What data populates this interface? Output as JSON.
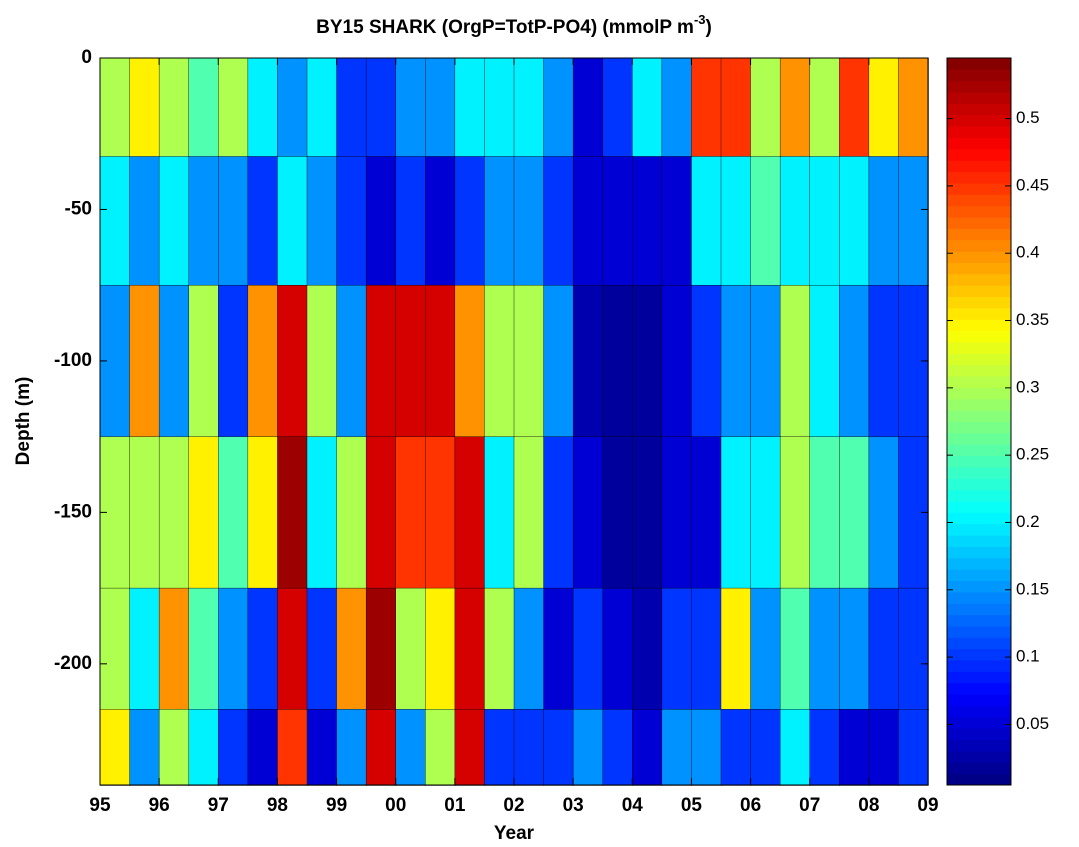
{
  "chart_data": {
    "type": "contour",
    "title": "BY15 SHARK (OrgP=TotP-PO4) (mmolP m",
    "title_superscript": "-3",
    "title_end": ")",
    "xlabel": "Year",
    "ylabel": "Depth (m)",
    "colormap": "jet",
    "x": [
      1995.25,
      1995.75,
      1996.25,
      1996.75,
      1997.25,
      1997.75,
      1998.25,
      1998.75,
      1999.25,
      1999.75,
      2000.25,
      2000.75,
      2001.25,
      2001.75,
      2002.25,
      2002.75,
      2003.25,
      2003.75,
      2004.25,
      2004.75,
      2005.25,
      2005.75,
      2006.25,
      2006.75,
      2007.25,
      2007.75,
      2008.25,
      2008.75
    ],
    "y": [
      -15,
      -50,
      -100,
      -150,
      -200,
      -230
    ],
    "z": [
      [
        0.3,
        0.35,
        0.3,
        0.25,
        0.3,
        0.2,
        0.15,
        0.2,
        0.1,
        0.1,
        0.15,
        0.15,
        0.2,
        0.2,
        0.2,
        0.15,
        0.05,
        0.1,
        0.2,
        0.15,
        0.45,
        0.45,
        0.3,
        0.4,
        0.3,
        0.45,
        0.35,
        0.4
      ],
      [
        0.2,
        0.15,
        0.2,
        0.15,
        0.15,
        0.1,
        0.2,
        0.15,
        0.1,
        0.05,
        0.1,
        0.05,
        0.1,
        0.15,
        0.15,
        0.1,
        0.05,
        0.05,
        0.05,
        0.05,
        0.2,
        0.2,
        0.25,
        0.2,
        0.2,
        0.2,
        0.15,
        0.15
      ],
      [
        0.15,
        0.4,
        0.15,
        0.3,
        0.1,
        0.4,
        0.5,
        0.3,
        0.15,
        0.5,
        0.5,
        0.5,
        0.4,
        0.3,
        0.3,
        0.15,
        0.03,
        0.02,
        0.02,
        0.05,
        0.1,
        0.15,
        0.15,
        0.3,
        0.2,
        0.15,
        0.1,
        0.1
      ],
      [
        0.3,
        0.3,
        0.3,
        0.35,
        0.25,
        0.35,
        0.53,
        0.2,
        0.3,
        0.5,
        0.45,
        0.45,
        0.5,
        0.2,
        0.3,
        0.1,
        0.05,
        0.02,
        0.02,
        0.05,
        0.05,
        0.2,
        0.2,
        0.3,
        0.25,
        0.25,
        0.15,
        0.1
      ],
      [
        0.3,
        0.2,
        0.4,
        0.25,
        0.15,
        0.1,
        0.5,
        0.1,
        0.4,
        0.53,
        0.3,
        0.35,
        0.5,
        0.3,
        0.15,
        0.05,
        0.1,
        0.05,
        0.03,
        0.1,
        0.1,
        0.35,
        0.15,
        0.25,
        0.15,
        0.15,
        0.1,
        0.1
      ],
      [
        0.35,
        0.15,
        0.3,
        0.2,
        0.1,
        0.05,
        0.45,
        0.05,
        0.15,
        0.5,
        0.15,
        0.3,
        0.5,
        0.1,
        0.1,
        0.1,
        0.15,
        0.1,
        0.05,
        0.15,
        0.15,
        0.1,
        0.1,
        0.2,
        0.1,
        0.05,
        0.05,
        0.1
      ]
    ],
    "xlim": [
      1995,
      2009
    ],
    "xticks": [
      {
        "value": 1995,
        "label": "95"
      },
      {
        "value": 1996,
        "label": "96"
      },
      {
        "value": 1997,
        "label": "97"
      },
      {
        "value": 1998,
        "label": "98"
      },
      {
        "value": 1999,
        "label": "99"
      },
      {
        "value": 2000,
        "label": "00"
      },
      {
        "value": 2001,
        "label": "01"
      },
      {
        "value": 2002,
        "label": "02"
      },
      {
        "value": 2003,
        "label": "03"
      },
      {
        "value": 2004,
        "label": "04"
      },
      {
        "value": 2005,
        "label": "05"
      },
      {
        "value": 2006,
        "label": "06"
      },
      {
        "value": 2007,
        "label": "07"
      },
      {
        "value": 2008,
        "label": "08"
      },
      {
        "value": 2009,
        "label": "09"
      }
    ],
    "ylim": [
      -240,
      0
    ],
    "yticks": [
      0,
      -50,
      -100,
      -150,
      -200
    ],
    "clim": [
      0.005,
      0.545
    ],
    "cticks": [
      0.05,
      0.1,
      0.15,
      0.2,
      0.25,
      0.3,
      0.35,
      0.4,
      0.45,
      0.5
    ]
  }
}
